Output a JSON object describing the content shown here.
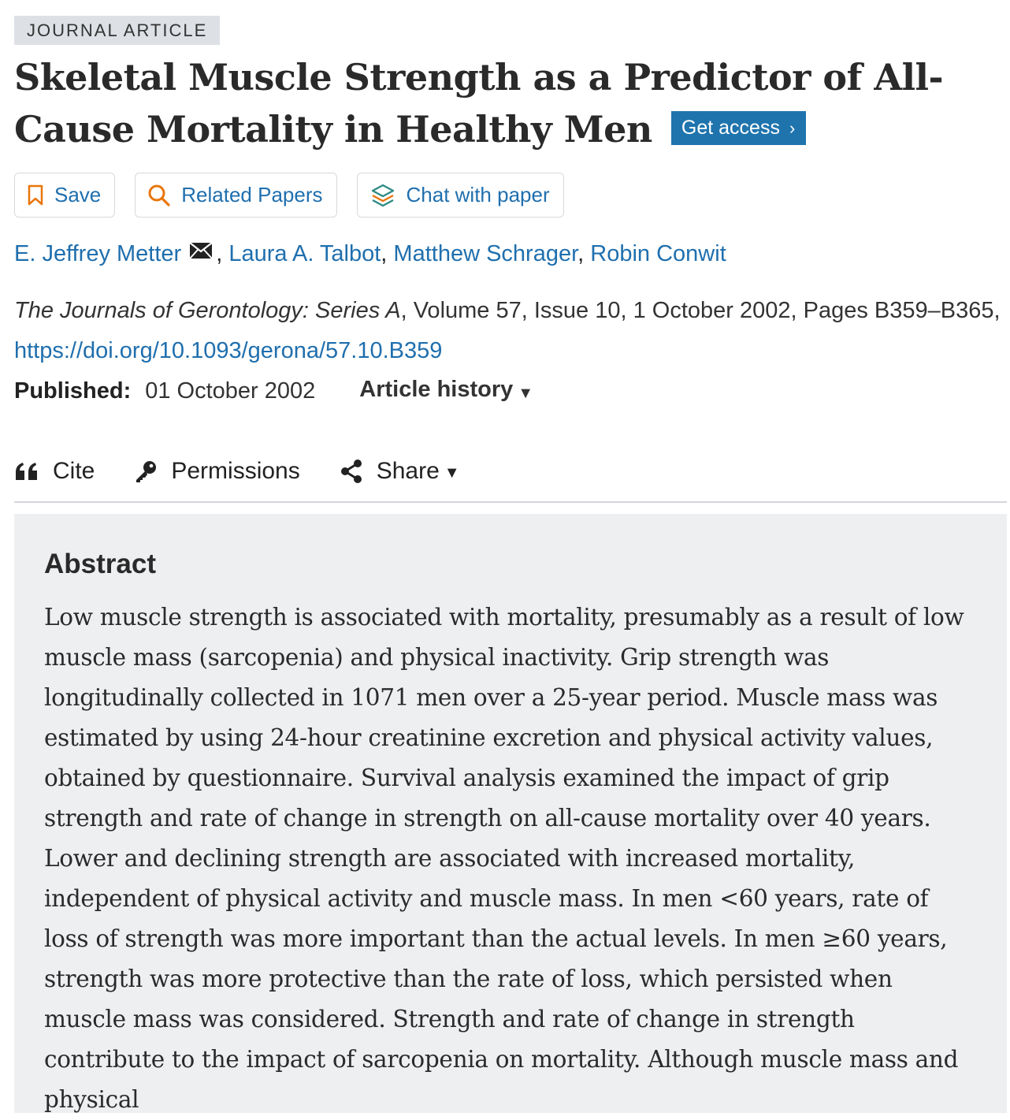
{
  "article_type": "JOURNAL ARTICLE",
  "title": "Skeletal Muscle Strength as a Predictor of All-Cause Mortality in Healthy Men",
  "get_access": "Get access",
  "tools": {
    "save": "Save",
    "related": "Related Papers",
    "chat": "Chat with paper"
  },
  "authors": [
    "E. Jeffrey Metter",
    "Laura A. Talbot",
    "Matthew Schrager",
    "Robin Conwit"
  ],
  "citation": {
    "journal": "The Journals of Gerontology: Series A",
    "details": ", Volume 57, Issue 10, 1 October 2002, Pages B359–B365, ",
    "doi": "https://doi.org/10.1093/gerona/57.10.B359"
  },
  "published": {
    "label": "Published:",
    "date": "01 October 2002",
    "history": "Article history"
  },
  "actions": {
    "cite": "Cite",
    "permissions": "Permissions",
    "share": "Share"
  },
  "abstract": {
    "heading": "Abstract",
    "text": "Low muscle strength is associated with mortality, presumably as a result of low muscle mass (sarcopenia) and physical inactivity. Grip strength was longitudinally collected in 1071 men over a 25-year period. Muscle mass was estimated by using 24-hour creatinine excretion and physical activity values, obtained by questionnaire. Survival analysis examined the impact of grip strength and rate of change in strength on all-cause mortality over 40 years. Lower and declining strength are associated with increased mortality, independent of physical activity and muscle mass. In men <60 years, rate of loss of strength was more important than the actual levels. In men ≥60 years, strength was more protective than the rate of loss, which persisted when muscle mass was considered. Strength and rate of change in strength contribute to the impact of sarcopenia on mortality. Although muscle mass and physical"
  },
  "colors": {
    "link": "#1f6fae",
    "access_button": "#1f74ad",
    "icon_orange": "#e8760b",
    "abstract_bg": "#eeeff1"
  }
}
